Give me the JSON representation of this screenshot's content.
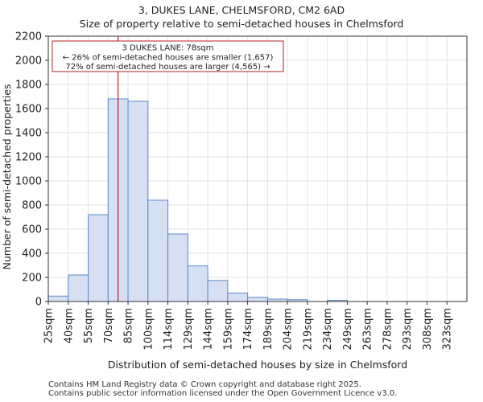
{
  "chart_data": {
    "type": "bar",
    "title": "3, DUKES LANE, CHELMSFORD, CM2 6AD",
    "subtitle": "Size of property relative to semi-detached houses in Chelmsford",
    "xlabel": "Distribution of semi-detached houses by size in Chelmsford",
    "ylabel": "Number of semi-detached properties",
    "categories": [
      "25sqm",
      "40sqm",
      "55sqm",
      "70sqm",
      "85sqm",
      "100sqm",
      "114sqm",
      "129sqm",
      "144sqm",
      "159sqm",
      "174sqm",
      "189sqm",
      "204sqm",
      "219sqm",
      "234sqm",
      "249sqm",
      "263sqm",
      "278sqm",
      "293sqm",
      "308sqm",
      "323sqm"
    ],
    "values": [
      45,
      220,
      720,
      1680,
      1660,
      840,
      560,
      295,
      175,
      70,
      35,
      20,
      15,
      0,
      10,
      0,
      0,
      0,
      0,
      0,
      0
    ],
    "ylim": [
      0,
      2200
    ],
    "yticks": [
      0,
      200,
      400,
      600,
      800,
      1000,
      1200,
      1400,
      1600,
      1800,
      2000,
      2200
    ],
    "grid": true,
    "bar_color": "#d6e0f2",
    "bar_edge": "#5b8ac9",
    "marker": {
      "bin_position": 3.5,
      "color": "#b22222",
      "annotation": [
        "3 DUKES LANE: 78sqm",
        "← 26% of semi-detached houses are smaller (1,657)",
        "72% of semi-detached houses are larger (4,565) →"
      ]
    }
  },
  "footer": {
    "line1": "Contains HM Land Registry data © Crown copyright and database right 2025.",
    "line2": "Contains public sector information licensed under the Open Government Licence v3.0."
  }
}
